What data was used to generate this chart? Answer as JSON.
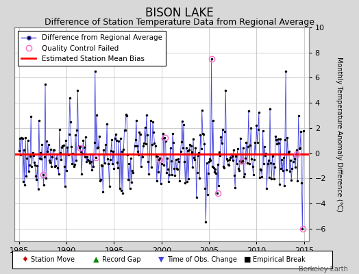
{
  "title": "BISON LAKE",
  "subtitle": "Difference of Station Temperature Data from Regional Average",
  "ylabel": "Monthly Temperature Anomaly Difference (°C)",
  "xlim": [
    1984.5,
    2015.5
  ],
  "ylim": [
    -7,
    10
  ],
  "yticks": [
    -6,
    -4,
    -2,
    0,
    2,
    4,
    6,
    8,
    10
  ],
  "xticks": [
    1985,
    1990,
    1995,
    2000,
    2005,
    2010,
    2015
  ],
  "bias_value": -0.1,
  "line_color": "#4444dd",
  "dot_color": "#000000",
  "bias_color": "#ff0000",
  "qc_fail_color": "#ff66cc",
  "background_color": "#d8d8d8",
  "plot_bg_color": "#ffffff",
  "grid_color": "#bbbbbb",
  "title_fontsize": 12,
  "subtitle_fontsize": 9,
  "legend_fontsize": 7.5,
  "axis_fontsize": 7,
  "tick_fontsize": 8,
  "watermark": "Berkeley Earth",
  "bottom_legend_items": [
    {
      "symbol": "♦",
      "label": "Station Move",
      "color": "#cc0000"
    },
    {
      "symbol": "▲",
      "label": "Record Gap",
      "color": "#008800"
    },
    {
      "symbol": "▼",
      "label": "Time of Obs. Change",
      "color": "#4444dd"
    },
    {
      "symbol": "■",
      "label": "Empirical Break",
      "color": "#000000"
    }
  ]
}
